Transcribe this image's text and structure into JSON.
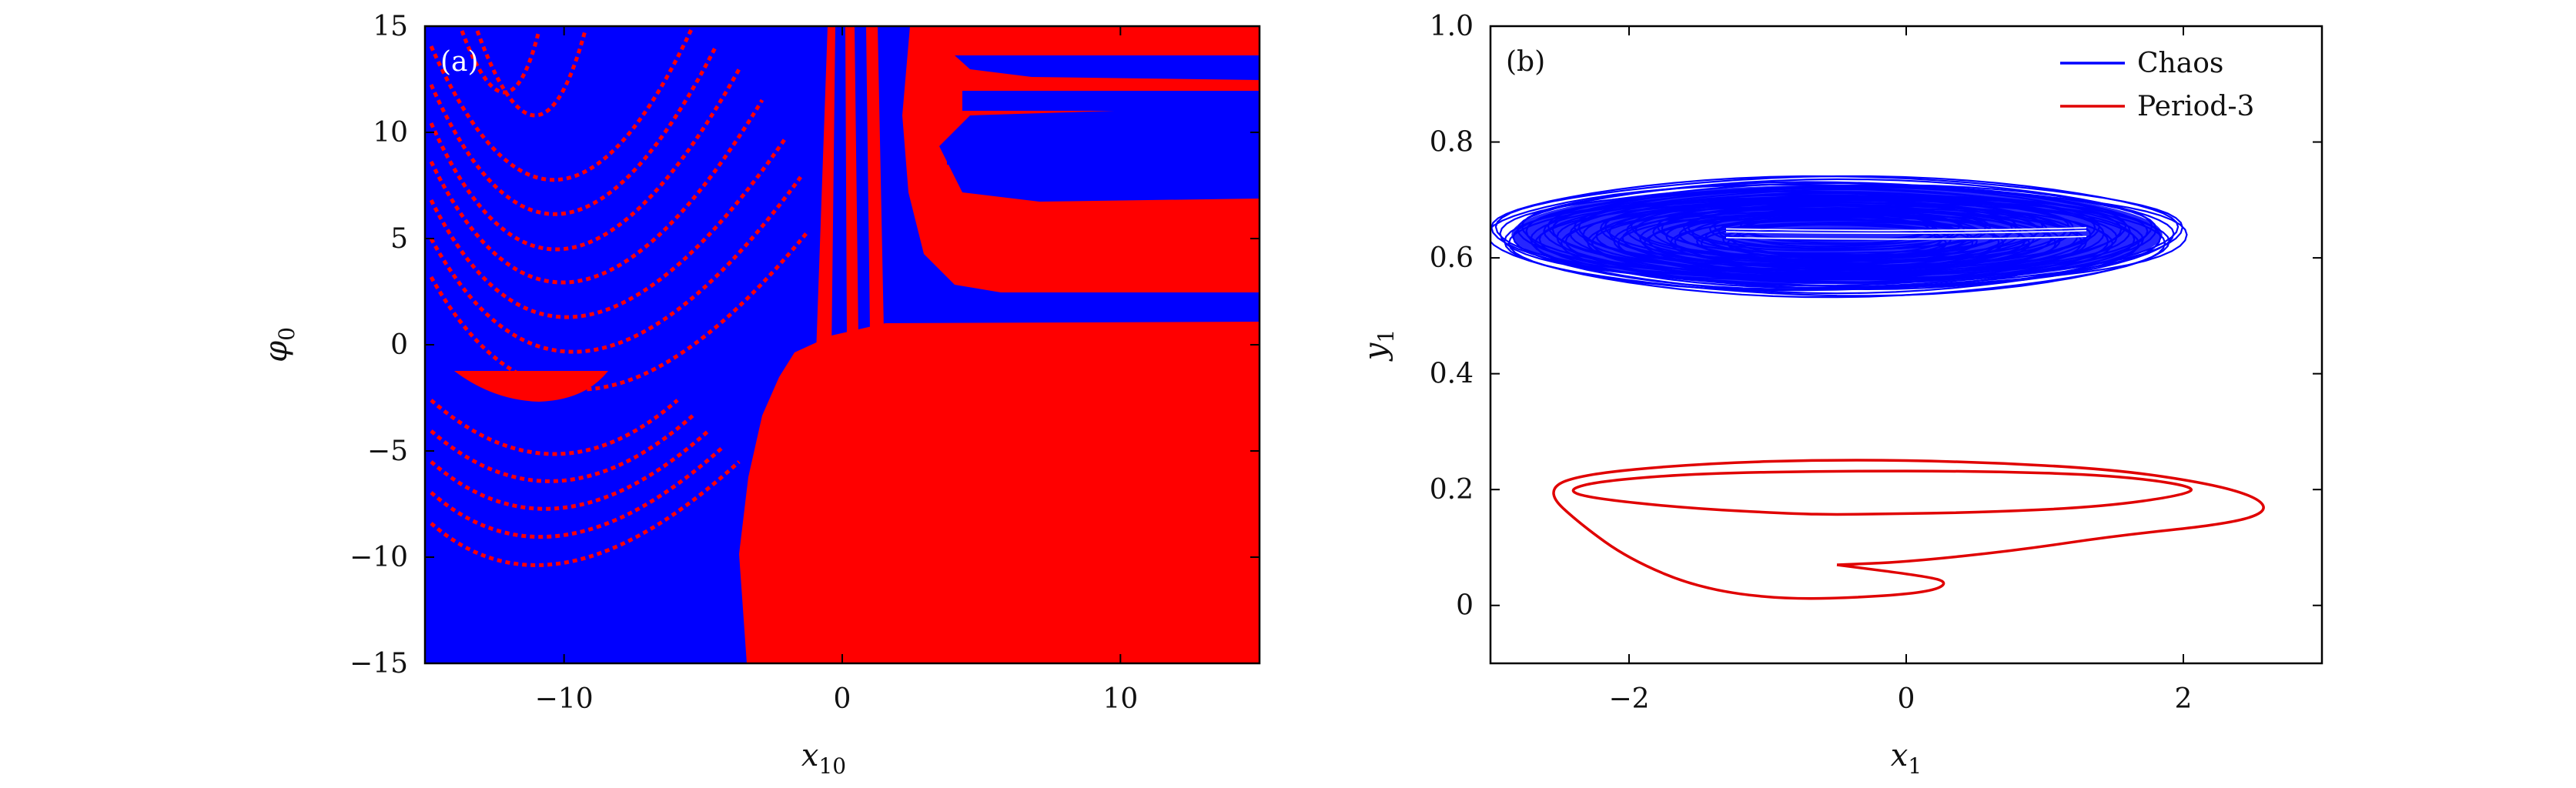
{
  "chart_data": [
    {
      "type": "heatmap",
      "panel_label": "(a)",
      "xlabel": "x",
      "xlabel_sub": "10",
      "ylabel": "φ",
      "ylabel_sub": "0",
      "xlim": [
        -15,
        15
      ],
      "ylim": [
        -15,
        15
      ],
      "xticks": [
        -10,
        0,
        10
      ],
      "xtick_labels": [
        "−10",
        "0",
        "10"
      ],
      "yticks": [
        -15,
        -10,
        -5,
        0,
        5,
        10,
        15
      ],
      "ytick_labels": [
        "−15",
        "−10",
        "−5",
        "0",
        "5",
        "10",
        "15"
      ],
      "colors": {
        "basin_a": "#0000ff",
        "basin_b": "#ff0000"
      },
      "regions": [
        {
          "color": "basin_b",
          "description": "lower-right region",
          "x_boundary": [
            [
              -3.5,
              -15
            ],
            [
              -1.7,
              -1
            ],
            [
              2,
              0.5
            ],
            [
              15,
              1
            ]
          ]
        },
        {
          "color": "basin_a",
          "description": "left and top region"
        }
      ]
    },
    {
      "type": "line",
      "panel_label": "(b)",
      "xlabel": "x",
      "xlabel_sub": "1",
      "ylabel": "y",
      "ylabel_sub": "1",
      "xlim": [
        -3.0,
        3.0
      ],
      "ylim": [
        -0.1,
        1.0
      ],
      "xticks": [
        -2,
        0,
        2
      ],
      "xtick_labels": [
        "−2",
        "0",
        "2"
      ],
      "yticks": [
        0,
        0.2,
        0.4,
        0.6,
        0.8,
        1.0
      ],
      "ytick_labels": [
        "0",
        "0.2",
        "0.4",
        "0.6",
        "0.8",
        "1.0"
      ],
      "legend_position": "top-right",
      "series": [
        {
          "name": "Chaos",
          "color": "#0000ff",
          "shape": "filled ring attractor",
          "x_range": [
            -2.6,
            2.45
          ],
          "y_range": [
            0.54,
            0.73
          ],
          "center": [
            -0.5,
            0.64
          ]
        },
        {
          "name": "Period-3",
          "color": "#e00000",
          "points": [
            [
              -0.5,
              0.07
            ],
            [
              0.15,
              0.05
            ],
            [
              0.3,
              0.04
            ],
            [
              0.2,
              0.025
            ],
            [
              -0.2,
              0.015
            ],
            [
              -0.9,
              0.01
            ],
            [
              -1.5,
              0.03
            ],
            [
              -2.0,
              0.08
            ],
            [
              -2.35,
              0.14
            ],
            [
              -2.6,
              0.195
            ],
            [
              -2.4,
              0.225
            ],
            [
              -1.5,
              0.245
            ],
            [
              -0.5,
              0.252
            ],
            [
              0.5,
              0.248
            ],
            [
              1.5,
              0.235
            ],
            [
              2.2,
              0.21
            ],
            [
              2.55,
              0.185
            ],
            [
              2.6,
              0.16
            ],
            [
              2.3,
              0.14
            ],
            [
              1.5,
              0.12
            ],
            [
              0.8,
              0.095
            ],
            [
              0.0,
              0.075
            ],
            [
              -0.5,
              0.07
            ]
          ],
          "points_loop2": [
            [
              -0.5,
              0.157
            ],
            [
              0.5,
              0.16
            ],
            [
              1.4,
              0.17
            ],
            [
              2.0,
              0.19
            ],
            [
              2.1,
              0.205
            ],
            [
              1.5,
              0.225
            ],
            [
              0.5,
              0.232
            ],
            [
              -0.5,
              0.232
            ],
            [
              -1.5,
              0.228
            ],
            [
              -2.2,
              0.215
            ],
            [
              -2.45,
              0.2
            ],
            [
              -2.3,
              0.186
            ],
            [
              -1.6,
              0.168
            ],
            [
              -0.8,
              0.158
            ],
            [
              -0.5,
              0.157
            ]
          ]
        }
      ]
    }
  ]
}
